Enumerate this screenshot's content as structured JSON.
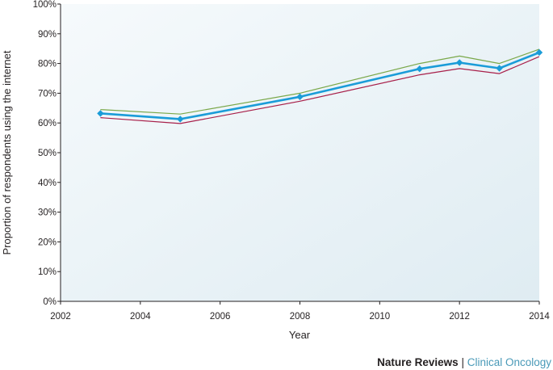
{
  "chart_data": {
    "type": "line",
    "xlabel": "Year",
    "ylabel": "Proportion of respondents using the internet",
    "xlim": [
      2002,
      2014
    ],
    "ylim": [
      0,
      100
    ],
    "x_ticks": [
      2002,
      2004,
      2006,
      2008,
      2010,
      2012,
      2014
    ],
    "y_ticks": [
      0,
      10,
      20,
      30,
      40,
      50,
      60,
      70,
      80,
      90,
      100
    ],
    "y_tick_suffix": "%",
    "grid": false,
    "x": [
      2003,
      2005,
      2008,
      2011,
      2012,
      2013,
      2014
    ],
    "series": [
      {
        "role": "upper",
        "color": "#7aa84a",
        "values": [
          64.5,
          63,
          70,
          80,
          82.5,
          80,
          84.8
        ]
      },
      {
        "role": "estimate",
        "color": "#1a9cd8",
        "markers": "diamond",
        "values": [
          63.2,
          61.3,
          68.8,
          78.2,
          80.3,
          78.4,
          83.7
        ]
      },
      {
        "role": "lower",
        "color": "#a8204a",
        "values": [
          61.8,
          59.8,
          67.3,
          76.2,
          78.3,
          76.6,
          82.3
        ]
      }
    ],
    "colors": {
      "plot_background": "#e9f2f6",
      "axis": "#231f20"
    }
  },
  "footer": {
    "brand": "Nature Reviews",
    "separator": " | ",
    "journal": "Clinical Oncology"
  }
}
